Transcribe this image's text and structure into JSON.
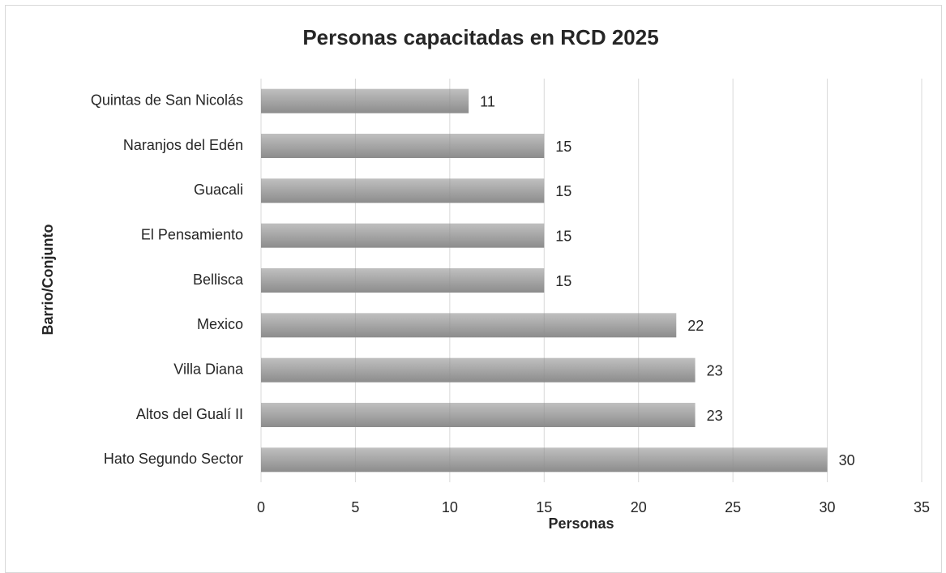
{
  "chart_data": {
    "type": "bar",
    "orientation": "horizontal",
    "title": "Personas capacitadas en RCD 2025",
    "x_label": "Personas",
    "y_label": "Barrio/Conjunto",
    "categories": [
      "Quintas de San Nicolás",
      "Naranjos del Edén",
      "Guacali",
      "El Pensamiento",
      "Bellisca",
      "Mexico",
      "Villa Diana",
      "Altos del Gualí II",
      "Hato Segundo Sector"
    ],
    "values": [
      11,
      15,
      15,
      15,
      15,
      22,
      23,
      23,
      30
    ],
    "color": "#8c8c8c",
    "xlim": [
      0,
      35
    ],
    "xticks": [
      0,
      5,
      10,
      15,
      20,
      25,
      30,
      35
    ],
    "grid": true
  }
}
